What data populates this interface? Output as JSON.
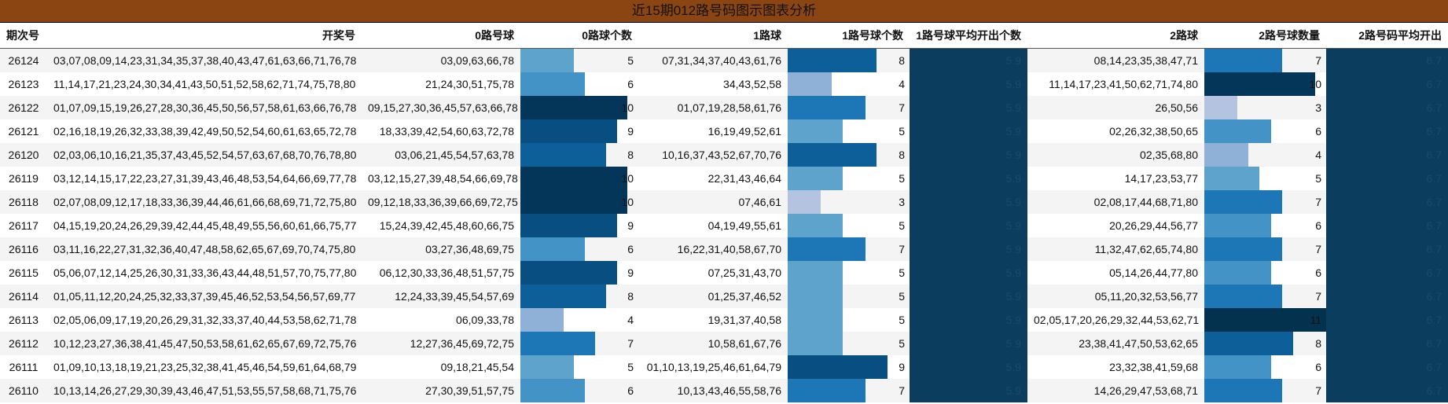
{
  "title": "近15期012路号码图示图表分析",
  "headers": [
    "期次号",
    "开奖号",
    "0路号球",
    "0路球个数",
    "1路球",
    "1路号球个数",
    "1路号球平均开出个数",
    "2路球",
    "2路号球数量",
    "2路号码平均开出"
  ],
  "max_count": 11,
  "rows": [
    {
      "period": "26124",
      "draw": "03,07,08,09,14,23,31,34,35,37,38,40,43,47,61,63,66,71,76,78",
      "r0": "03,09,63,66,78",
      "c0": 5,
      "r1": "07,31,34,37,40,43,61,76",
      "c1": 8,
      "avg1": "5.9",
      "r2": "08,14,23,35,38,47,71",
      "c2": 7,
      "avg2": "6.7"
    },
    {
      "period": "26123",
      "draw": "11,14,17,21,23,24,30,34,41,43,50,51,52,58,62,71,74,75,78,80",
      "r0": "21,24,30,51,75,78",
      "c0": 6,
      "r1": "34,43,52,58",
      "c1": 4,
      "avg1": "5.9",
      "r2": "11,14,17,23,41,50,62,71,74,80",
      "c2": 10,
      "avg2": "6.7"
    },
    {
      "period": "26122",
      "draw": "01,07,09,15,19,26,27,28,30,36,45,50,56,57,58,61,63,66,76,78",
      "r0": "09,15,27,30,36,45,57,63,66,78",
      "c0": 10,
      "r1": "01,07,19,28,58,61,76",
      "c1": 7,
      "avg1": "5.9",
      "r2": "26,50,56",
      "c2": 3,
      "avg2": "6.7"
    },
    {
      "period": "26121",
      "draw": "02,16,18,19,26,32,33,38,39,42,49,50,52,54,60,61,63,65,72,78",
      "r0": "18,33,39,42,54,60,63,72,78",
      "c0": 9,
      "r1": "16,19,49,52,61",
      "c1": 5,
      "avg1": "5.9",
      "r2": "02,26,32,38,50,65",
      "c2": 6,
      "avg2": "6.7"
    },
    {
      "period": "26120",
      "draw": "02,03,06,10,16,21,35,37,43,45,52,54,57,63,67,68,70,76,78,80",
      "r0": "03,06,21,45,54,57,63,78",
      "c0": 8,
      "r1": "10,16,37,43,52,67,70,76",
      "c1": 8,
      "avg1": "5.9",
      "r2": "02,35,68,80",
      "c2": 4,
      "avg2": "6.7"
    },
    {
      "period": "26119",
      "draw": "03,12,14,15,17,22,23,27,31,39,43,46,48,53,54,64,66,69,77,78",
      "r0": "03,12,15,27,39,48,54,66,69,78",
      "c0": 10,
      "r1": "22,31,43,46,64",
      "c1": 5,
      "avg1": "5.9",
      "r2": "14,17,23,53,77",
      "c2": 5,
      "avg2": "6.7"
    },
    {
      "period": "26118",
      "draw": "02,07,08,09,12,17,18,33,36,39,44,46,61,66,68,69,71,72,75,80",
      "r0": "09,12,18,33,36,39,66,69,72,75",
      "c0": 10,
      "r1": "07,46,61",
      "c1": 3,
      "avg1": "5.9",
      "r2": "02,08,17,44,68,71,80",
      "c2": 7,
      "avg2": "6.7"
    },
    {
      "period": "26117",
      "draw": "04,15,19,20,24,26,29,39,42,44,45,48,49,55,56,60,61,66,75,77",
      "r0": "15,24,39,42,45,48,60,66,75",
      "c0": 9,
      "r1": "04,19,49,55,61",
      "c1": 5,
      "avg1": "5.9",
      "r2": "20,26,29,44,56,77",
      "c2": 6,
      "avg2": "6.7"
    },
    {
      "period": "26116",
      "draw": "03,11,16,22,27,31,32,36,40,47,48,58,62,65,67,69,70,74,75,80",
      "r0": "03,27,36,48,69,75",
      "c0": 6,
      "r1": "16,22,31,40,58,67,70",
      "c1": 7,
      "avg1": "5.9",
      "r2": "11,32,47,62,65,74,80",
      "c2": 7,
      "avg2": "6.7"
    },
    {
      "period": "26115",
      "draw": "05,06,07,12,14,25,26,30,31,33,36,43,44,48,51,57,70,75,77,80",
      "r0": "06,12,30,33,36,48,51,57,75",
      "c0": 9,
      "r1": "07,25,31,43,70",
      "c1": 5,
      "avg1": "5.9",
      "r2": "05,14,26,44,77,80",
      "c2": 6,
      "avg2": "6.7"
    },
    {
      "period": "26114",
      "draw": "01,05,11,12,20,24,25,32,33,37,39,45,46,52,53,54,56,57,69,77",
      "r0": "12,24,33,39,45,54,57,69",
      "c0": 8,
      "r1": "01,25,37,46,52",
      "c1": 5,
      "avg1": "5.9",
      "r2": "05,11,20,32,53,56,77",
      "c2": 7,
      "avg2": "6.7"
    },
    {
      "period": "26113",
      "draw": "02,05,06,09,17,19,20,26,29,31,32,33,37,40,44,53,58,62,71,78",
      "r0": "06,09,33,78",
      "c0": 4,
      "r1": "19,31,37,40,58",
      "c1": 5,
      "avg1": "5.9",
      "r2": "02,05,17,20,26,29,32,44,53,62,71",
      "c2": 11,
      "avg2": "6.7"
    },
    {
      "period": "26112",
      "draw": "10,12,23,27,36,38,41,45,47,50,53,58,61,62,65,67,69,72,75,76",
      "r0": "12,27,36,45,69,72,75",
      "c0": 7,
      "r1": "10,58,61,67,76",
      "c1": 5,
      "avg1": "5.9",
      "r2": "23,38,41,47,50,53,62,65",
      "c2": 8,
      "avg2": "6.7"
    },
    {
      "period": "26111",
      "draw": "01,09,10,13,18,19,21,23,25,32,38,41,45,46,54,59,61,64,68,79",
      "r0": "09,18,21,45,54",
      "c0": 5,
      "r1": "01,10,13,19,25,46,61,64,79",
      "c1": 9,
      "avg1": "5.9",
      "r2": "23,32,38,41,59,68",
      "c2": 6,
      "avg2": "6.7"
    },
    {
      "period": "26110",
      "draw": "10,13,14,26,27,29,30,39,43,46,47,51,53,55,57,58,68,71,75,76",
      "r0": "27,30,39,51,57,75",
      "c0": 6,
      "r1": "10,13,43,46,55,58,76",
      "c1": 7,
      "avg1": "5.9",
      "r2": "14,26,29,47,53,68,71",
      "c2": 7,
      "avg2": "6.7"
    }
  ],
  "colors": {
    "3": "#b3c3e0",
    "4": "#8fb1d7",
    "5": "#5ea3cc",
    "6": "#4493c6",
    "7": "#1d77b6",
    "8": "#0d5f99",
    "9": "#084e80",
    "10": "#04365a",
    "11": "#03324f",
    "avg": "#0b3d5e"
  }
}
